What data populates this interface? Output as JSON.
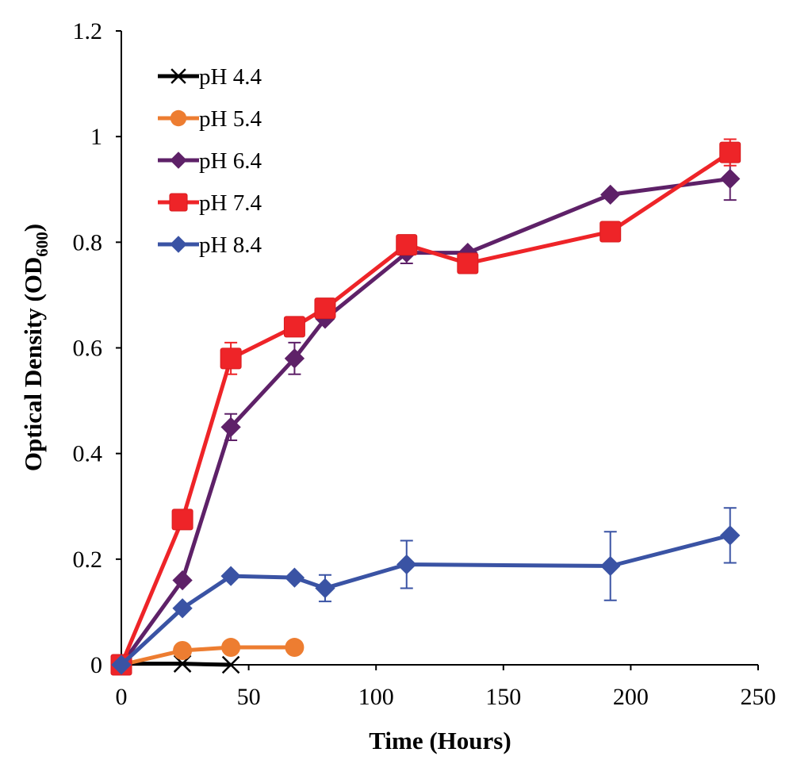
{
  "chart_data": {
    "type": "line",
    "title": "",
    "xlabel": "Time (Hours)",
    "ylabel_main": "Optical Density (OD",
    "ylabel_sub": "600",
    "ylabel_close": ")",
    "xlim": [
      0,
      250
    ],
    "ylim": [
      0,
      1.2
    ],
    "xticks": [
      0,
      50,
      100,
      150,
      200,
      250
    ],
    "xtick_labels": [
      "0",
      "50",
      "100",
      "150",
      "200",
      "250"
    ],
    "yticks": [
      0,
      0.2,
      0.4,
      0.6,
      0.8,
      1.0,
      1.2
    ],
    "ytick_labels": [
      "0",
      "0.2",
      "0.4",
      "0.6",
      "0.8",
      "1",
      "1.2"
    ],
    "grid": false,
    "legend_position": "top-left",
    "series": [
      {
        "name": "pH 4.4",
        "color": "#000000",
        "marker": "x",
        "x": [
          0,
          24,
          43
        ],
        "y": [
          0.002,
          0.002,
          0.0
        ],
        "err": [
          0,
          0,
          0
        ]
      },
      {
        "name": "pH 5.4",
        "color": "#ED7D31",
        "marker": "circle",
        "x": [
          0,
          24,
          43,
          68
        ],
        "y": [
          0.0,
          0.027,
          0.033,
          0.033
        ],
        "err": [
          0,
          0,
          0,
          0
        ]
      },
      {
        "name": "pH 6.4",
        "color": "#5E2168",
        "marker": "diamond",
        "x": [
          0,
          24,
          43,
          68,
          80,
          112,
          136,
          192,
          239
        ],
        "y": [
          0.0,
          0.16,
          0.45,
          0.58,
          0.655,
          0.78,
          0.78,
          0.89,
          0.92
        ],
        "err": [
          0,
          0,
          0.025,
          0.03,
          0,
          0.02,
          0,
          0,
          0.04
        ]
      },
      {
        "name": "pH 7.4",
        "color": "#EE2428",
        "marker": "square",
        "x": [
          0,
          24,
          43,
          68,
          80,
          112,
          136,
          192,
          239
        ],
        "y": [
          0.0,
          0.275,
          0.58,
          0.64,
          0.675,
          0.795,
          0.76,
          0.82,
          0.97
        ],
        "err": [
          0,
          0,
          0.03,
          0,
          0,
          0,
          0,
          0,
          0.025
        ]
      },
      {
        "name": "pH 8.4",
        "color": "#3A53A4",
        "marker": "diamond",
        "x": [
          0,
          24,
          43,
          68,
          80,
          112,
          192,
          239
        ],
        "y": [
          0.0,
          0.107,
          0.168,
          0.165,
          0.145,
          0.19,
          0.187,
          0.245
        ],
        "err": [
          0,
          0,
          0,
          0,
          0.025,
          0.045,
          0.065,
          0.052
        ]
      }
    ]
  }
}
